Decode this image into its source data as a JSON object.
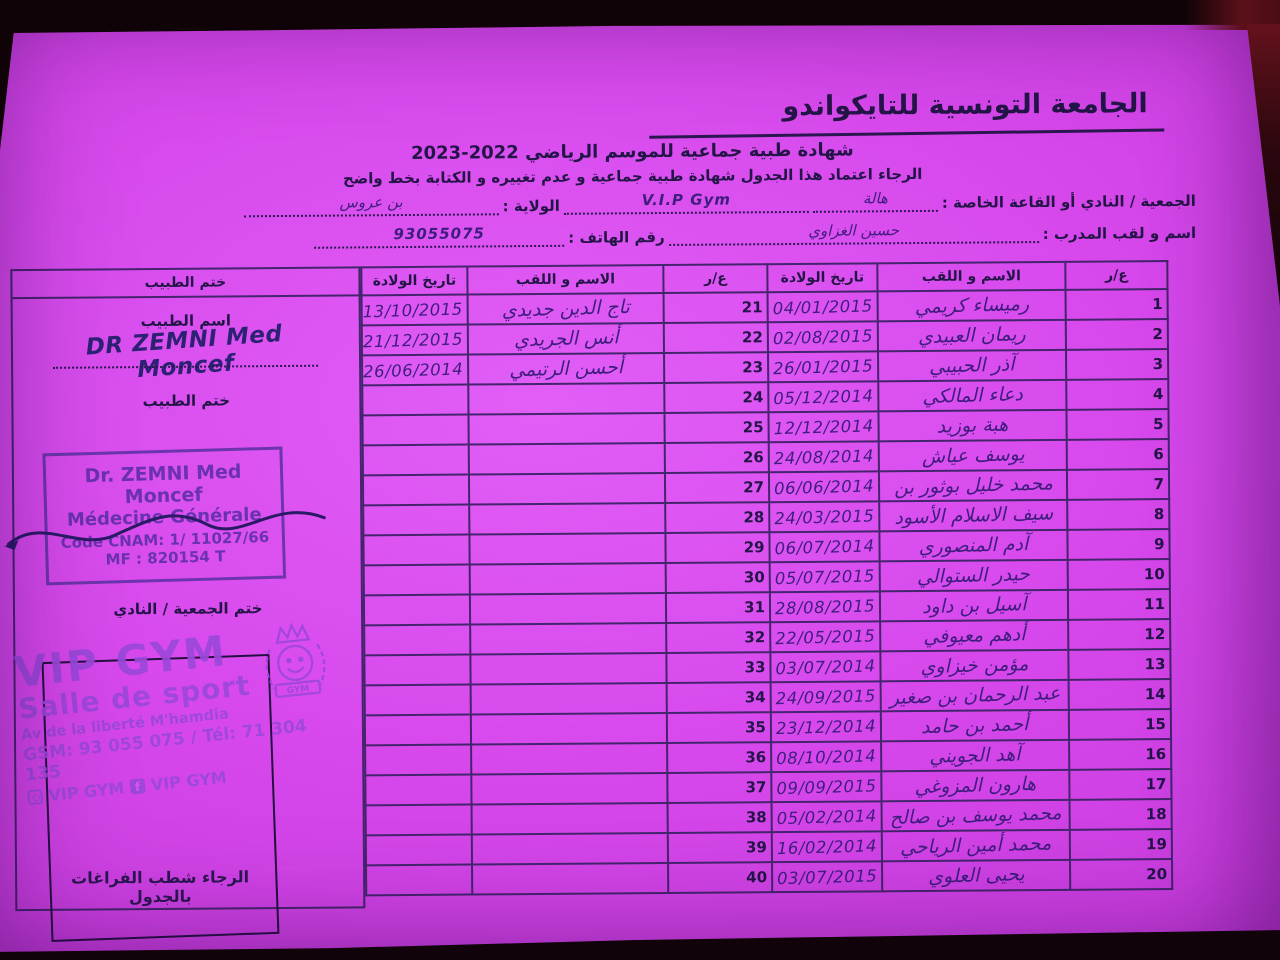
{
  "header": {
    "federation_title": "الجامعة التونسية للتايكواندو",
    "certificate_title": "شهادة طبية جماعية للموسم الرياضي 2022-2023",
    "instruction_line": "الرجاء اعتماد هذا الجدول شهادة طبية جماعية و عدم تغييره و الكتابة بخط واضح"
  },
  "form": {
    "club_label": "الجمعية / النادي أو القاعة الخاصة :",
    "club_value_ar": "هالة",
    "club_value_latin": "V.I.P Gym",
    "state_label": "الولاية :",
    "state_value": "بن عروس",
    "trainer_label": "اسم و لقب المدرب :",
    "trainer_value": "حسين الغزاوي",
    "phone_label": "رقم الهاتف :",
    "phone_value": "93055075"
  },
  "table": {
    "headers": {
      "serial": "ع/ر",
      "name": "الاسم و اللقب",
      "birth_date": "تاريخ الولادة",
      "doctor_stamp": "ختم الطبيب"
    },
    "rows_1_20": [
      {
        "n": "1",
        "name": "رميساء كريمي",
        "dob": "04/01/2015"
      },
      {
        "n": "2",
        "name": "ريمان العبيدي",
        "dob": "02/08/2015"
      },
      {
        "n": "3",
        "name": "آذر الحبيبي",
        "dob": "26/01/2015"
      },
      {
        "n": "4",
        "name": "دعاء المالكي",
        "dob": "05/12/2014"
      },
      {
        "n": "5",
        "name": "هبة بوزيد",
        "dob": "12/12/2014"
      },
      {
        "n": "6",
        "name": "يوسف عياش",
        "dob": "24/08/2014"
      },
      {
        "n": "7",
        "name": "محمد خليل بوثور بن",
        "dob": "06/06/2014"
      },
      {
        "n": "8",
        "name": "سيف الاسلام الأسود",
        "dob": "24/03/2015"
      },
      {
        "n": "9",
        "name": "آدم المنصوري",
        "dob": "06/07/2014"
      },
      {
        "n": "10",
        "name": "حيدر الستوالي",
        "dob": "05/07/2015"
      },
      {
        "n": "11",
        "name": "آسيل بن داود",
        "dob": "28/08/2015"
      },
      {
        "n": "12",
        "name": "أدهم معيوفي",
        "dob": "22/05/2015"
      },
      {
        "n": "13",
        "name": "مؤمن خيزاوي",
        "dob": "03/07/2014"
      },
      {
        "n": "14",
        "name": "عبد الرحمان بن صغير",
        "dob": "24/09/2015"
      },
      {
        "n": "15",
        "name": "أحمد بن حامد",
        "dob": "23/12/2014"
      },
      {
        "n": "16",
        "name": "آهد الجويني",
        "dob": "08/10/2014"
      },
      {
        "n": "17",
        "name": "هارون المزوغي",
        "dob": "09/09/2015"
      },
      {
        "n": "18",
        "name": "محمد يوسف بن صالح",
        "dob": "05/02/2014"
      },
      {
        "n": "19",
        "name": "محمد أمين الرياحي",
        "dob": "16/02/2014"
      },
      {
        "n": "20",
        "name": "يحيى العلوي",
        "dob": "03/07/2015"
      }
    ],
    "rows_21_40": [
      {
        "n": "21",
        "name": "تاج الدين جديدي",
        "dob": "13/10/2015"
      },
      {
        "n": "22",
        "name": "أنس الجريدي",
        "dob": "21/12/2015"
      },
      {
        "n": "23",
        "name": "أحسن الرتيمي",
        "dob": "26/06/2014"
      },
      {
        "n": "24",
        "name": "",
        "dob": ""
      },
      {
        "n": "25",
        "name": "",
        "dob": ""
      },
      {
        "n": "26",
        "name": "",
        "dob": ""
      },
      {
        "n": "27",
        "name": "",
        "dob": ""
      },
      {
        "n": "28",
        "name": "",
        "dob": ""
      },
      {
        "n": "29",
        "name": "",
        "dob": ""
      },
      {
        "n": "30",
        "name": "",
        "dob": ""
      },
      {
        "n": "31",
        "name": "",
        "dob": ""
      },
      {
        "n": "32",
        "name": "",
        "dob": ""
      },
      {
        "n": "33",
        "name": "",
        "dob": ""
      },
      {
        "n": "34",
        "name": "",
        "dob": ""
      },
      {
        "n": "35",
        "name": "",
        "dob": ""
      },
      {
        "n": "36",
        "name": "",
        "dob": ""
      },
      {
        "n": "37",
        "name": "",
        "dob": ""
      },
      {
        "n": "38",
        "name": "",
        "dob": ""
      },
      {
        "n": "39",
        "name": "",
        "dob": ""
      },
      {
        "n": "40",
        "name": "",
        "dob": ""
      }
    ]
  },
  "doctor_section": {
    "doctor_name_label": "اسم الطبيب",
    "doctor_signature": "DR ZEMNI Med Moncef",
    "doctor_stamp_label": "ختم الطبيب",
    "stamp_line1": "Dr. ZEMNI Med Moncef",
    "stamp_line2": "Médecine Générale",
    "stamp_line3": "Code CNAM: 1/ 11027/66",
    "stamp_line4": "MF : 820154 T",
    "association_stamp_label": "ختم الجمعية / النادي"
  },
  "gym_stamp": {
    "name": "VIP GYM",
    "subtitle": "Salle de sport",
    "address": "Av de la liberté M'hamdia",
    "phones": "GSM: 93 055 075 / Tél: 71 304 135",
    "instagram_handle": "VIP GYM",
    "facebook_handle": "VIP GYM"
  },
  "footer_note": "الرجاء شطب الفراغات بالجدول",
  "colors": {
    "paper": "#d748ec",
    "printed_ink": "#241548",
    "handwriting_ink": "#3f1d7e",
    "doctor_stamp_ink": "#6a32ae",
    "gym_stamp_ink": "#9b48da",
    "background": "#0d0206"
  }
}
